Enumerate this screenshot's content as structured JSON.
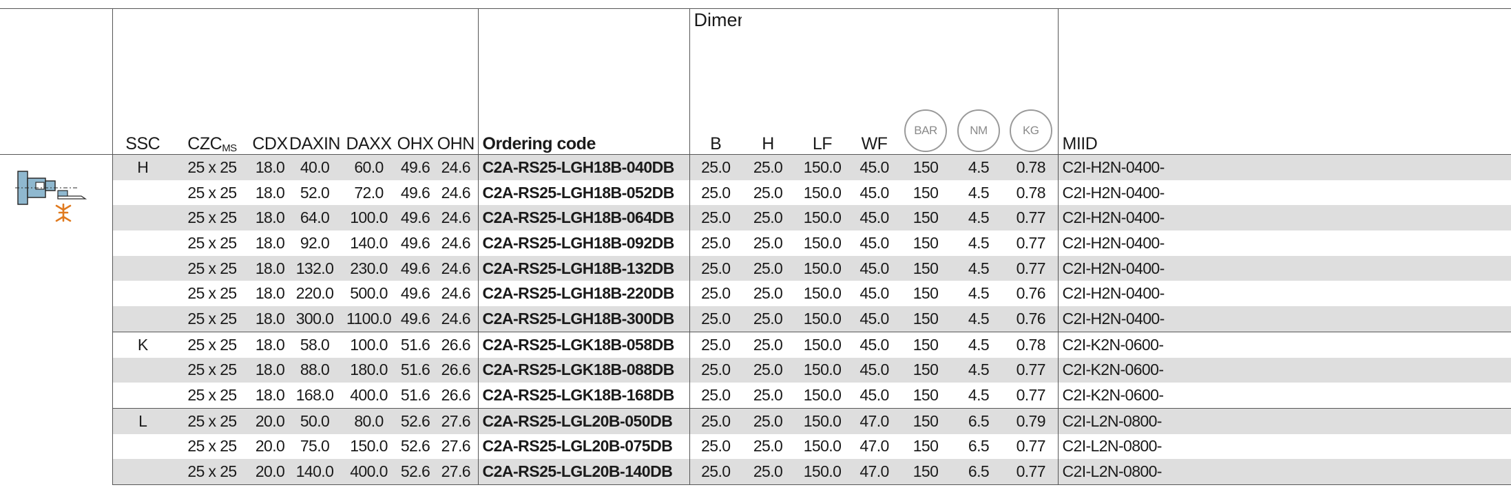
{
  "header": {
    "dimensions_title": "Dimensions, mm",
    "columns": {
      "ssc": "SSC",
      "czc": "CZC",
      "czc_sub": "MS",
      "cdx": "CDX",
      "daxin": "DAXIN",
      "daxx": "DAXX",
      "ohx": "OHX",
      "ohn": "OHN",
      "ordering_code": "Ordering code",
      "b": "B",
      "h": "H",
      "lf": "LF",
      "wf": "WF",
      "miid": "MIID"
    },
    "circles": {
      "bar": "BAR",
      "nm": "NM",
      "kg": "KG"
    }
  },
  "icon": "clamping-unit-boring-bar-icon",
  "colors": {
    "row_shade": "#dedede",
    "tool_body": "#8fb8cf",
    "tool_accent": "#e07a1f",
    "rule": "#555555"
  },
  "rows": [
    {
      "ssc": "H",
      "czc": "25 x 25",
      "cdx": "18.0",
      "daxin": "40.0",
      "daxx": "60.0",
      "ohx": "49.6",
      "ohn": "24.6",
      "code": "C2A-RS25-LGH18B-040DB",
      "b": "25.0",
      "h": "25.0",
      "lf": "150.0",
      "wf": "45.0",
      "bar": "150",
      "nm": "4.5",
      "kg": "0.78",
      "miid": "C2I-H2N-0400-"
    },
    {
      "ssc": "",
      "czc": "25 x 25",
      "cdx": "18.0",
      "daxin": "52.0",
      "daxx": "72.0",
      "ohx": "49.6",
      "ohn": "24.6",
      "code": "C2A-RS25-LGH18B-052DB",
      "b": "25.0",
      "h": "25.0",
      "lf": "150.0",
      "wf": "45.0",
      "bar": "150",
      "nm": "4.5",
      "kg": "0.78",
      "miid": "C2I-H2N-0400-"
    },
    {
      "ssc": "",
      "czc": "25 x 25",
      "cdx": "18.0",
      "daxin": "64.0",
      "daxx": "100.0",
      "ohx": "49.6",
      "ohn": "24.6",
      "code": "C2A-RS25-LGH18B-064DB",
      "b": "25.0",
      "h": "25.0",
      "lf": "150.0",
      "wf": "45.0",
      "bar": "150",
      "nm": "4.5",
      "kg": "0.77",
      "miid": "C2I-H2N-0400-"
    },
    {
      "ssc": "",
      "czc": "25 x 25",
      "cdx": "18.0",
      "daxin": "92.0",
      "daxx": "140.0",
      "ohx": "49.6",
      "ohn": "24.6",
      "code": "C2A-RS25-LGH18B-092DB",
      "b": "25.0",
      "h": "25.0",
      "lf": "150.0",
      "wf": "45.0",
      "bar": "150",
      "nm": "4.5",
      "kg": "0.77",
      "miid": "C2I-H2N-0400-"
    },
    {
      "ssc": "",
      "czc": "25 x 25",
      "cdx": "18.0",
      "daxin": "132.0",
      "daxx": "230.0",
      "ohx": "49.6",
      "ohn": "24.6",
      "code": "C2A-RS25-LGH18B-132DB",
      "b": "25.0",
      "h": "25.0",
      "lf": "150.0",
      "wf": "45.0",
      "bar": "150",
      "nm": "4.5",
      "kg": "0.77",
      "miid": "C2I-H2N-0400-"
    },
    {
      "ssc": "",
      "czc": "25 x 25",
      "cdx": "18.0",
      "daxin": "220.0",
      "daxx": "500.0",
      "ohx": "49.6",
      "ohn": "24.6",
      "code": "C2A-RS25-LGH18B-220DB",
      "b": "25.0",
      "h": "25.0",
      "lf": "150.0",
      "wf": "45.0",
      "bar": "150",
      "nm": "4.5",
      "kg": "0.76",
      "miid": "C2I-H2N-0400-"
    },
    {
      "ssc": "",
      "czc": "25 x 25",
      "cdx": "18.0",
      "daxin": "300.0",
      "daxx": "1100.0",
      "ohx": "49.6",
      "ohn": "24.6",
      "code": "C2A-RS25-LGH18B-300DB",
      "b": "25.0",
      "h": "25.0",
      "lf": "150.0",
      "wf": "45.0",
      "bar": "150",
      "nm": "4.5",
      "kg": "0.76",
      "miid": "C2I-H2N-0400-"
    },
    {
      "ssc": "K",
      "czc": "25 x 25",
      "cdx": "18.0",
      "daxin": "58.0",
      "daxx": "100.0",
      "ohx": "51.6",
      "ohn": "26.6",
      "code": "C2A-RS25-LGK18B-058DB",
      "b": "25.0",
      "h": "25.0",
      "lf": "150.0",
      "wf": "45.0",
      "bar": "150",
      "nm": "4.5",
      "kg": "0.78",
      "miid": "C2I-K2N-0600-"
    },
    {
      "ssc": "",
      "czc": "25 x 25",
      "cdx": "18.0",
      "daxin": "88.0",
      "daxx": "180.0",
      "ohx": "51.6",
      "ohn": "26.6",
      "code": "C2A-RS25-LGK18B-088DB",
      "b": "25.0",
      "h": "25.0",
      "lf": "150.0",
      "wf": "45.0",
      "bar": "150",
      "nm": "4.5",
      "kg": "0.77",
      "miid": "C2I-K2N-0600-"
    },
    {
      "ssc": "",
      "czc": "25 x 25",
      "cdx": "18.0",
      "daxin": "168.0",
      "daxx": "400.0",
      "ohx": "51.6",
      "ohn": "26.6",
      "code": "C2A-RS25-LGK18B-168DB",
      "b": "25.0",
      "h": "25.0",
      "lf": "150.0",
      "wf": "45.0",
      "bar": "150",
      "nm": "4.5",
      "kg": "0.77",
      "miid": "C2I-K2N-0600-"
    },
    {
      "ssc": "L",
      "czc": "25 x 25",
      "cdx": "20.0",
      "daxin": "50.0",
      "daxx": "80.0",
      "ohx": "52.6",
      "ohn": "27.6",
      "code": "C2A-RS25-LGL20B-050DB",
      "b": "25.0",
      "h": "25.0",
      "lf": "150.0",
      "wf": "47.0",
      "bar": "150",
      "nm": "6.5",
      "kg": "0.79",
      "miid": "C2I-L2N-0800-"
    },
    {
      "ssc": "",
      "czc": "25 x 25",
      "cdx": "20.0",
      "daxin": "75.0",
      "daxx": "150.0",
      "ohx": "52.6",
      "ohn": "27.6",
      "code": "C2A-RS25-LGL20B-075DB",
      "b": "25.0",
      "h": "25.0",
      "lf": "150.0",
      "wf": "47.0",
      "bar": "150",
      "nm": "6.5",
      "kg": "0.77",
      "miid": "C2I-L2N-0800-"
    },
    {
      "ssc": "",
      "czc": "25 x 25",
      "cdx": "20.0",
      "daxin": "140.0",
      "daxx": "400.0",
      "ohx": "52.6",
      "ohn": "27.6",
      "code": "C2A-RS25-LGL20B-140DB",
      "b": "25.0",
      "h": "25.0",
      "lf": "150.0",
      "wf": "47.0",
      "bar": "150",
      "nm": "6.5",
      "kg": "0.77",
      "miid": "C2I-L2N-0800-"
    }
  ]
}
